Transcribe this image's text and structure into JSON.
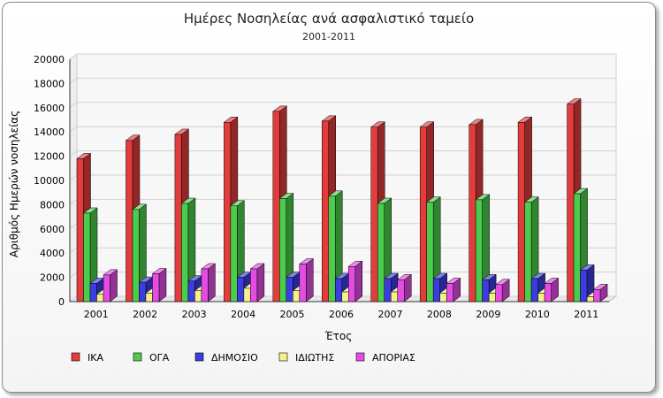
{
  "chart_data": {
    "type": "bar",
    "title": "Ημέρες Νοσηλείας ανά ασφαλιστικό ταμείο",
    "subtitle": "2001-2011",
    "xlabel": "Έτος",
    "ylabel": "Αριθμός Ημερών νοσηλείας",
    "ylim": [
      0,
      20000
    ],
    "yticks": [
      0,
      2000,
      4000,
      6000,
      8000,
      10000,
      12000,
      14000,
      16000,
      18000,
      20000
    ],
    "grid": true,
    "legend_position": "bottom",
    "categories": [
      "2001",
      "2002",
      "2003",
      "2004",
      "2005",
      "2006",
      "2007",
      "2008",
      "2009",
      "2010",
      "2011"
    ],
    "series": [
      {
        "name": "ΙΚΑ",
        "color": "#e23c3c",
        "values": [
          11800,
          13300,
          13800,
          14800,
          15700,
          14900,
          14400,
          14400,
          14600,
          14800,
          16300
        ]
      },
      {
        "name": "ΟΓΑ",
        "color": "#4ccc4c",
        "values": [
          7300,
          7600,
          8100,
          7900,
          8500,
          8700,
          8100,
          8200,
          8400,
          8200,
          8900
        ]
      },
      {
        "name": "ΔΗΜΟΣΙΟ",
        "color": "#3c3ce0",
        "values": [
          1500,
          1600,
          1700,
          2000,
          2000,
          1900,
          1900,
          1900,
          1800,
          1900,
          2600
        ]
      },
      {
        "name": "ΙΔΙΩΤΗΣ",
        "color": "#f5f08a",
        "values": [
          600,
          700,
          900,
          1100,
          900,
          800,
          800,
          700,
          700,
          700,
          400
        ]
      },
      {
        "name": "ΑΠΟΡΙΑΣ",
        "color": "#e44ce4",
        "values": [
          2200,
          2300,
          2700,
          2700,
          3100,
          2900,
          1800,
          1500,
          1400,
          1500,
          1000
        ]
      }
    ]
  }
}
